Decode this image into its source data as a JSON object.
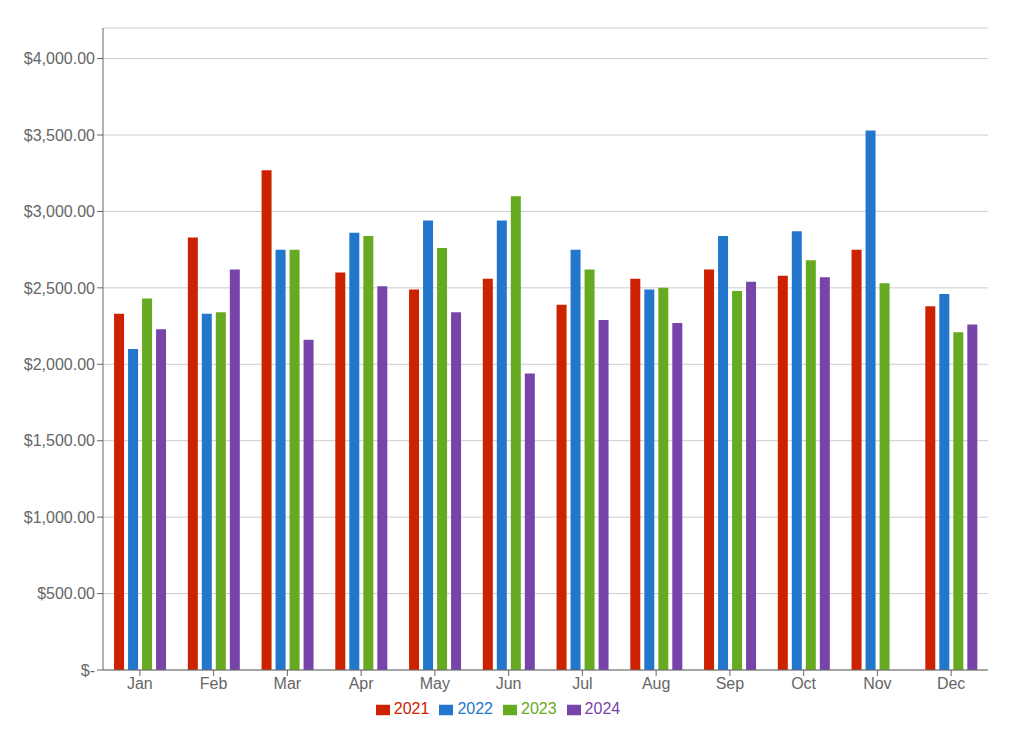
{
  "chart_data": {
    "type": "bar",
    "categories": [
      "Jan",
      "Feb",
      "Mar",
      "Apr",
      "May",
      "Jun",
      "Jul",
      "Aug",
      "Sep",
      "Oct",
      "Nov",
      "Dec"
    ],
    "series": [
      {
        "name": "2021",
        "color": "#cc2200",
        "values": [
          2330,
          2830,
          3270,
          2600,
          2490,
          2560,
          2390,
          2560,
          2620,
          2580,
          2750,
          2380
        ]
      },
      {
        "name": "2022",
        "color": "#2277cc",
        "values": [
          2100,
          2330,
          2750,
          2860,
          2940,
          2940,
          2750,
          2490,
          2840,
          2870,
          3530,
          2460
        ]
      },
      {
        "name": "2023",
        "color": "#66aa22",
        "values": [
          2430,
          2340,
          2750,
          2840,
          2760,
          3100,
          2620,
          2500,
          2480,
          2680,
          2530,
          2210
        ]
      },
      {
        "name": "2024",
        "color": "#7744aa",
        "values": [
          2230,
          2620,
          2160,
          2510,
          2340,
          1940,
          2290,
          2270,
          2540,
          2570,
          0,
          2260
        ]
      }
    ],
    "ylim": [
      0,
      4200
    ],
    "yticks": [
      {
        "value": 0,
        "label": "$-"
      },
      {
        "value": 500,
        "label": "$500.00"
      },
      {
        "value": 1000,
        "label": "$1,000.00"
      },
      {
        "value": 1500,
        "label": "$1,500.00"
      },
      {
        "value": 2000,
        "label": "$2,000.00"
      },
      {
        "value": 2500,
        "label": "$2,500.00"
      },
      {
        "value": 3000,
        "label": "$3,000.00"
      },
      {
        "value": 3500,
        "label": "$3,500.00"
      },
      {
        "value": 4000,
        "label": "$4,000.00"
      }
    ],
    "grid": true,
    "legend": "bottom"
  }
}
